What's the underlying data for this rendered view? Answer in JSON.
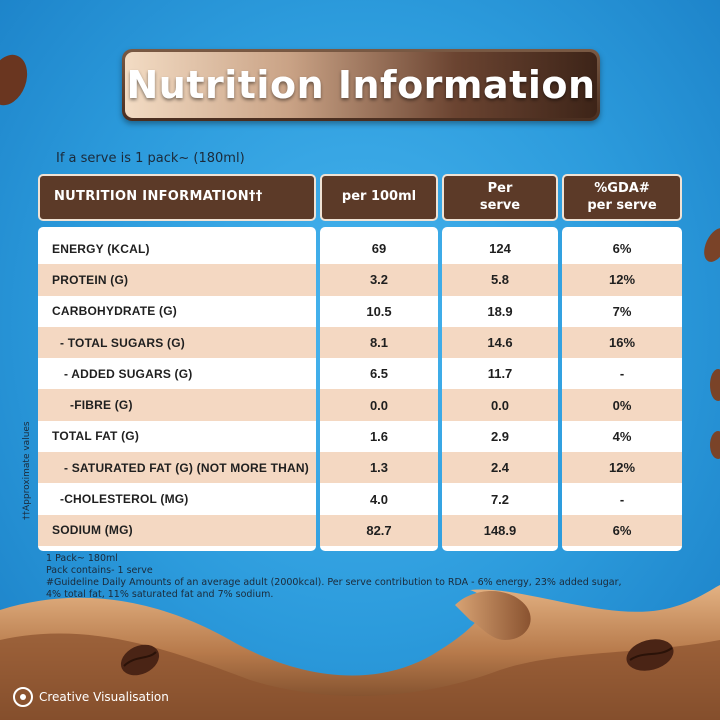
{
  "title": "Nutrition Information",
  "serve_note": "If a serve is 1 pack~ (180ml)",
  "table": {
    "headers": {
      "label": "NUTRITION INFORMATION††",
      "per100": "per 100ml",
      "per_serve": [
        "Per",
        "serve"
      ],
      "gda": [
        "%GDA#",
        "per serve"
      ]
    },
    "rows": [
      {
        "label": "ENERGY (KCAL)",
        "per100": "69",
        "serve": "124",
        "gda": "6%"
      },
      {
        "label": "PROTEIN (G)",
        "per100": "3.2",
        "serve": "5.8",
        "gda": "12%"
      },
      {
        "label": "CARBOHYDRATE (G)",
        "per100": "10.5",
        "serve": "18.9",
        "gda": "7%"
      },
      {
        "label": "- TOTAL SUGARS (G)",
        "per100": "8.1",
        "serve": "14.6",
        "gda": "16%"
      },
      {
        "label": "- ADDED SUGARS (G)",
        "per100": "6.5",
        "serve": "11.7",
        "gda": "-"
      },
      {
        "label": "-FIBRE (G)",
        "per100": "0.0",
        "serve": "0.0",
        "gda": "0%"
      },
      {
        "label": "TOTAL FAT (G)",
        "per100": "1.6",
        "serve": "2.9",
        "gda": "4%"
      },
      {
        "label": "- SATURATED FAT (G) (NOT MORE THAN)",
        "per100": "1.3",
        "serve": "2.4",
        "gda": "12%"
      },
      {
        "label": "-CHOLESTEROL (MG)",
        "per100": "4.0",
        "serve": "7.2",
        "gda": "-"
      },
      {
        "label": "SODIUM (MG)",
        "per100": "82.7",
        "serve": "148.9",
        "gda": "6%"
      }
    ]
  },
  "side_note": "††Approximate values",
  "footnotes": [
    "1 Pack~ 180ml",
    "Pack contains- 1 serve",
    "#Guideline Daily Amounts of an average adult (2000kcal). Per serve contribution to RDA - 6% energy, 23% added sugar,",
    "4% total fat,  11% saturated fat and 7% sodium."
  ],
  "badge": "Creative Visualisation",
  "colors": {
    "background": "#2c9bdc",
    "header": "#5c3a28",
    "shaded_row": "#f4d8c2",
    "milk": "#c58a58"
  }
}
